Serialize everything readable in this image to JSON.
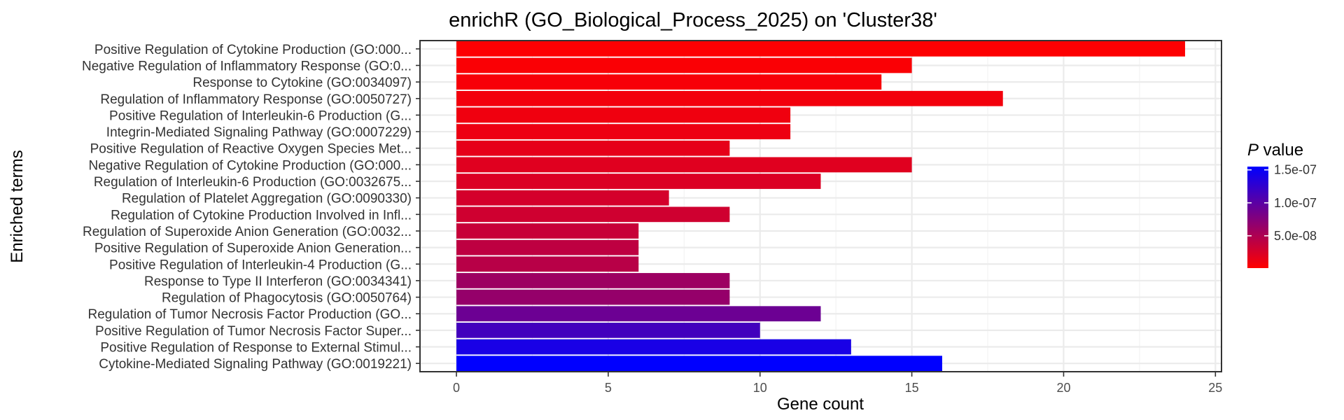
{
  "chart_data": {
    "type": "bar",
    "orientation": "horizontal",
    "title": "enrichR (GO_Biological_Process_2025) on 'Cluster38'",
    "xlabel": "Gene count",
    "ylabel": "Enriched terms",
    "xlim": [
      -1.2,
      25.2
    ],
    "xticks": [
      0,
      5,
      10,
      15,
      20,
      25
    ],
    "grid": true,
    "legend": {
      "title_prefix": "P",
      "title_suffix": " value",
      "placement": "right",
      "ticks": [
        {
          "label": "1.5e-07",
          "value": 1.5e-07
        },
        {
          "label": "1.0e-07",
          "value": 1e-07
        },
        {
          "label": "5.0e-08",
          "value": 5e-08
        }
      ],
      "range": [
        1e-09,
        1.55e-07
      ],
      "low_color": "#ff0000",
      "high_color": "#0000ff"
    },
    "categories": [
      "Positive Regulation of Cytokine Production (GO:000...",
      "Negative Regulation of Inflammatory Response (GO:0...",
      "Response to Cytokine (GO:0034097)",
      "Regulation of Inflammatory Response (GO:0050727)",
      "Positive Regulation of Interleukin-6 Production (G...",
      "Integrin-Mediated Signaling Pathway (GO:0007229)",
      "Positive Regulation of Reactive Oxygen Species Met...",
      "Negative Regulation of Cytokine Production (GO:000...",
      "Regulation of Interleukin-6 Production (GO:0032675...",
      "Regulation of Platelet Aggregation (GO:0090330)",
      "Regulation of Cytokine Production Involved in Infl...",
      "Regulation of Superoxide Anion Generation (GO:0032...",
      "Positive Regulation of Superoxide Anion Generation...",
      "Positive Regulation of Interleukin-4 Production (G...",
      "Response to Type II Interferon (GO:0034341)",
      "Regulation of Phagocytosis (GO:0050764)",
      "Regulation of Tumor Necrosis Factor Production (GO...",
      "Positive Regulation of Tumor Necrosis Factor Super...",
      "Positive Regulation of Response to External Stimul...",
      "Cytokine-Mediated Signaling Pathway (GO:0019221)"
    ],
    "values": [
      24,
      15,
      14,
      18,
      11,
      11,
      9,
      15,
      12,
      7,
      9,
      6,
      6,
      6,
      9,
      9,
      12,
      10,
      13,
      16
    ],
    "p_values": [
      2e-09,
      4e-09,
      6e-09,
      8e-09,
      1e-08,
      1.2e-08,
      1.6e-08,
      2e-08,
      2.3e-08,
      2.7e-08,
      3e-08,
      3.5e-08,
      4e-08,
      4.4e-08,
      6e-08,
      6.5e-08,
      9e-08,
      1.15e-07,
      1.4e-07,
      1.55e-07
    ]
  }
}
